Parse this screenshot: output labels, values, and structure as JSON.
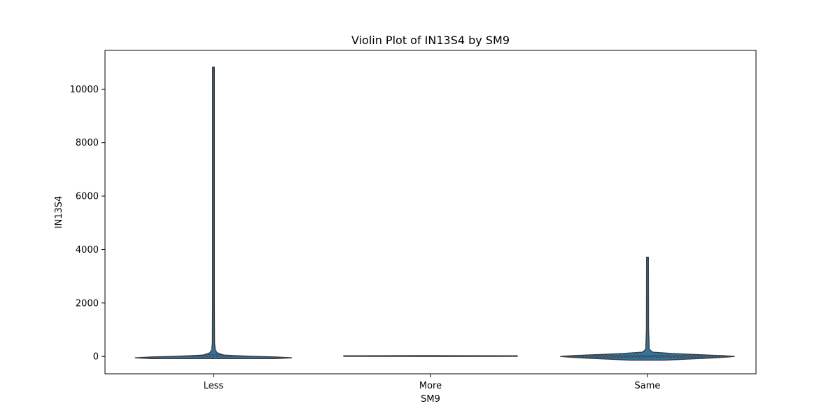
{
  "chart_data": {
    "type": "violin",
    "title": "Violin Plot of IN13S4 by SM9",
    "xlabel": "SM9",
    "ylabel": "IN13S4",
    "categories": [
      "Less",
      "More",
      "Same"
    ],
    "ylim": [
      -650,
      11450
    ],
    "yticks": [
      0,
      2000,
      4000,
      6000,
      8000,
      10000
    ],
    "ytick_labels": [
      "0",
      "2000",
      "4000",
      "6000",
      "8000",
      "10000"
    ],
    "fill_color": "#3274a1",
    "line_color": "#404040",
    "grid": false,
    "violins": [
      {
        "category": "Less",
        "min": -80,
        "max": 10820,
        "profile": [
          [
            -80,
            0.72
          ],
          [
            -50,
            0.9
          ],
          [
            -20,
            0.72
          ],
          [
            0,
            0.45
          ],
          [
            20,
            0.3
          ],
          [
            50,
            0.12
          ],
          [
            90,
            0.08
          ],
          [
            140,
            0.04
          ],
          [
            250,
            0.02
          ],
          [
            500,
            0.012
          ],
          [
            2000,
            0.01
          ],
          [
            10820,
            0.01
          ]
        ],
        "quartile_lines": [
          0,
          20,
          70
        ]
      },
      {
        "category": "More",
        "min": 0,
        "max": 30,
        "profile": [
          [
            0,
            0.0
          ],
          [
            5,
            1.0
          ],
          [
            15,
            1.0
          ],
          [
            25,
            1.0
          ],
          [
            30,
            0.0
          ]
        ],
        "quartile_lines": []
      },
      {
        "category": "Same",
        "min": -140,
        "max": 3710,
        "profile": [
          [
            -140,
            0.2
          ],
          [
            -100,
            0.45
          ],
          [
            -60,
            0.72
          ],
          [
            -20,
            0.92
          ],
          [
            0,
            1.0
          ],
          [
            30,
            0.85
          ],
          [
            70,
            0.55
          ],
          [
            110,
            0.28
          ],
          [
            160,
            0.06
          ],
          [
            260,
            0.02
          ],
          [
            1000,
            0.012
          ],
          [
            3710,
            0.01
          ]
        ],
        "quartile_lines": [
          -30,
          0,
          40
        ]
      }
    ]
  }
}
